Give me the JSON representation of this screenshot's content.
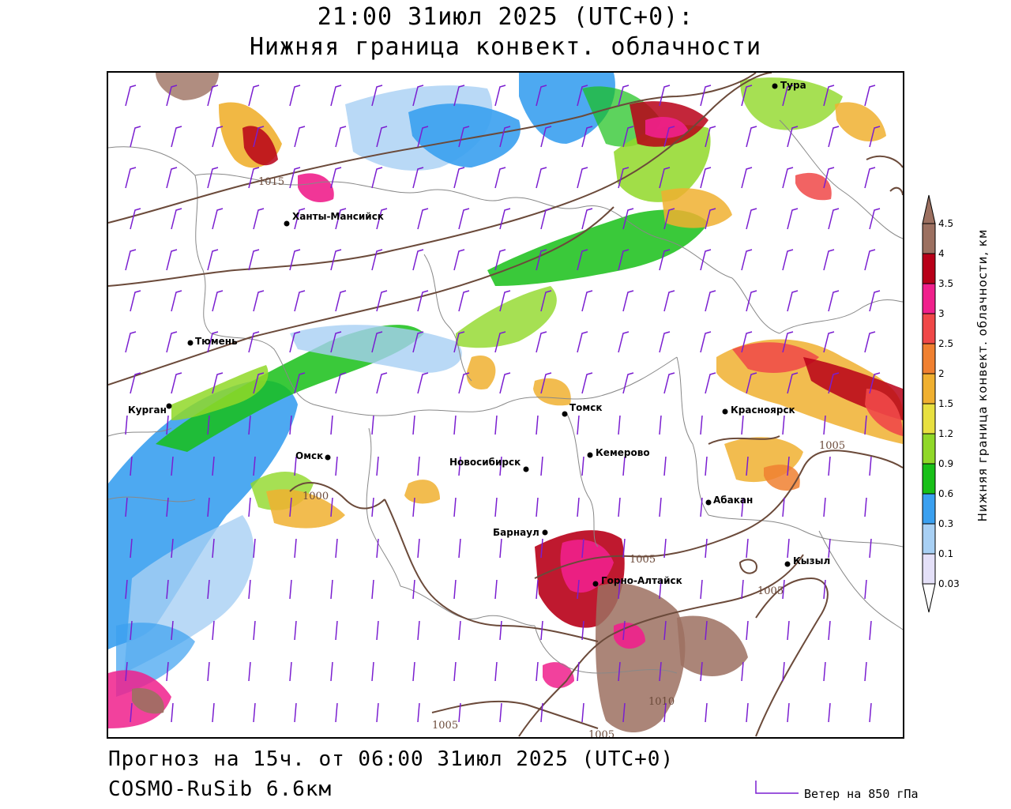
{
  "header": {
    "time_line": "21:00 31июл 2025 (UTC+0):",
    "parameter_line": "Нижняя граница конвект. облачности"
  },
  "footer": {
    "forecast_line": "Прогноз на 15ч. от 06:00 31июл 2025 (UTC+0)",
    "model_line": "COSMO-RuSib 6.6км",
    "wind_legend": "Ветер на 850 гПа"
  },
  "colorbar": {
    "title": "Нижняя граница конвект. облачности, км",
    "levels": [
      "0.03",
      "0.1",
      "0.3",
      "0.6",
      "0.9",
      "1.2",
      "1.5",
      "2",
      "2.5",
      "3",
      "3.5",
      "4",
      "4.5"
    ],
    "colors": [
      "#e4e0f8",
      "#a8d0f4",
      "#3aa0f0",
      "#18c018",
      "#90d828",
      "#e8e040",
      "#f0b030",
      "#f08030",
      "#f04848",
      "#f0208c",
      "#b80018",
      "#9c7060"
    ],
    "top_arrow_color": "#9c7060",
    "bottom_arrow_color": "#ffffff"
  },
  "cities": [
    {
      "name": "Тура"
    },
    {
      "name": "Ханты-Мансийск"
    },
    {
      "name": "Тюмень"
    },
    {
      "name": "Курган"
    },
    {
      "name": "Омск"
    },
    {
      "name": "Новосибирск"
    },
    {
      "name": "Томск"
    },
    {
      "name": "Кемерово"
    },
    {
      "name": "Красноярск"
    },
    {
      "name": "Абакан"
    },
    {
      "name": "Барнаул"
    },
    {
      "name": "Горно-Алтайск"
    },
    {
      "name": "Кызыл"
    }
  ],
  "isobars": [
    {
      "label": "1015"
    },
    {
      "label": "1000"
    },
    {
      "label": "1005"
    },
    {
      "label": "1005"
    },
    {
      "label": "1005"
    },
    {
      "label": "1005"
    },
    {
      "label": "1005"
    },
    {
      "label": "1010"
    }
  ],
  "colors": {
    "isobar": "#6b4a3a",
    "wind_barb": "#7a1ed0",
    "border": "#888888"
  }
}
